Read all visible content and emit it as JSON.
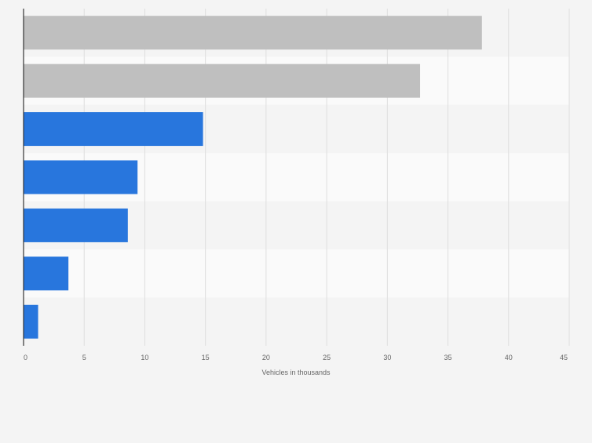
{
  "chart_data": {
    "type": "bar",
    "orientation": "horizontal",
    "categories": [
      "",
      "",
      "",
      "",
      "",
      "",
      ""
    ],
    "values": [
      37.8,
      32.7,
      14.8,
      9.4,
      8.6,
      3.7,
      1.2
    ],
    "bar_colors": [
      "#bfbfbf",
      "#bfbfbf",
      "#2876dd",
      "#2876dd",
      "#2876dd",
      "#2876dd",
      "#2876dd"
    ],
    "title": "",
    "xlabel": "Vehicles in thousands",
    "ylabel": "",
    "xlim": [
      0,
      45
    ],
    "xticks": [
      0,
      5,
      10,
      15,
      20,
      25,
      30,
      35,
      40,
      45
    ],
    "grid": true,
    "legend": "none"
  },
  "colors": {
    "background": "#f4f4f4",
    "band_alt": "#fafafa",
    "gridline": "#dedede",
    "axis": "#333333",
    "tick_text": "#666666"
  }
}
